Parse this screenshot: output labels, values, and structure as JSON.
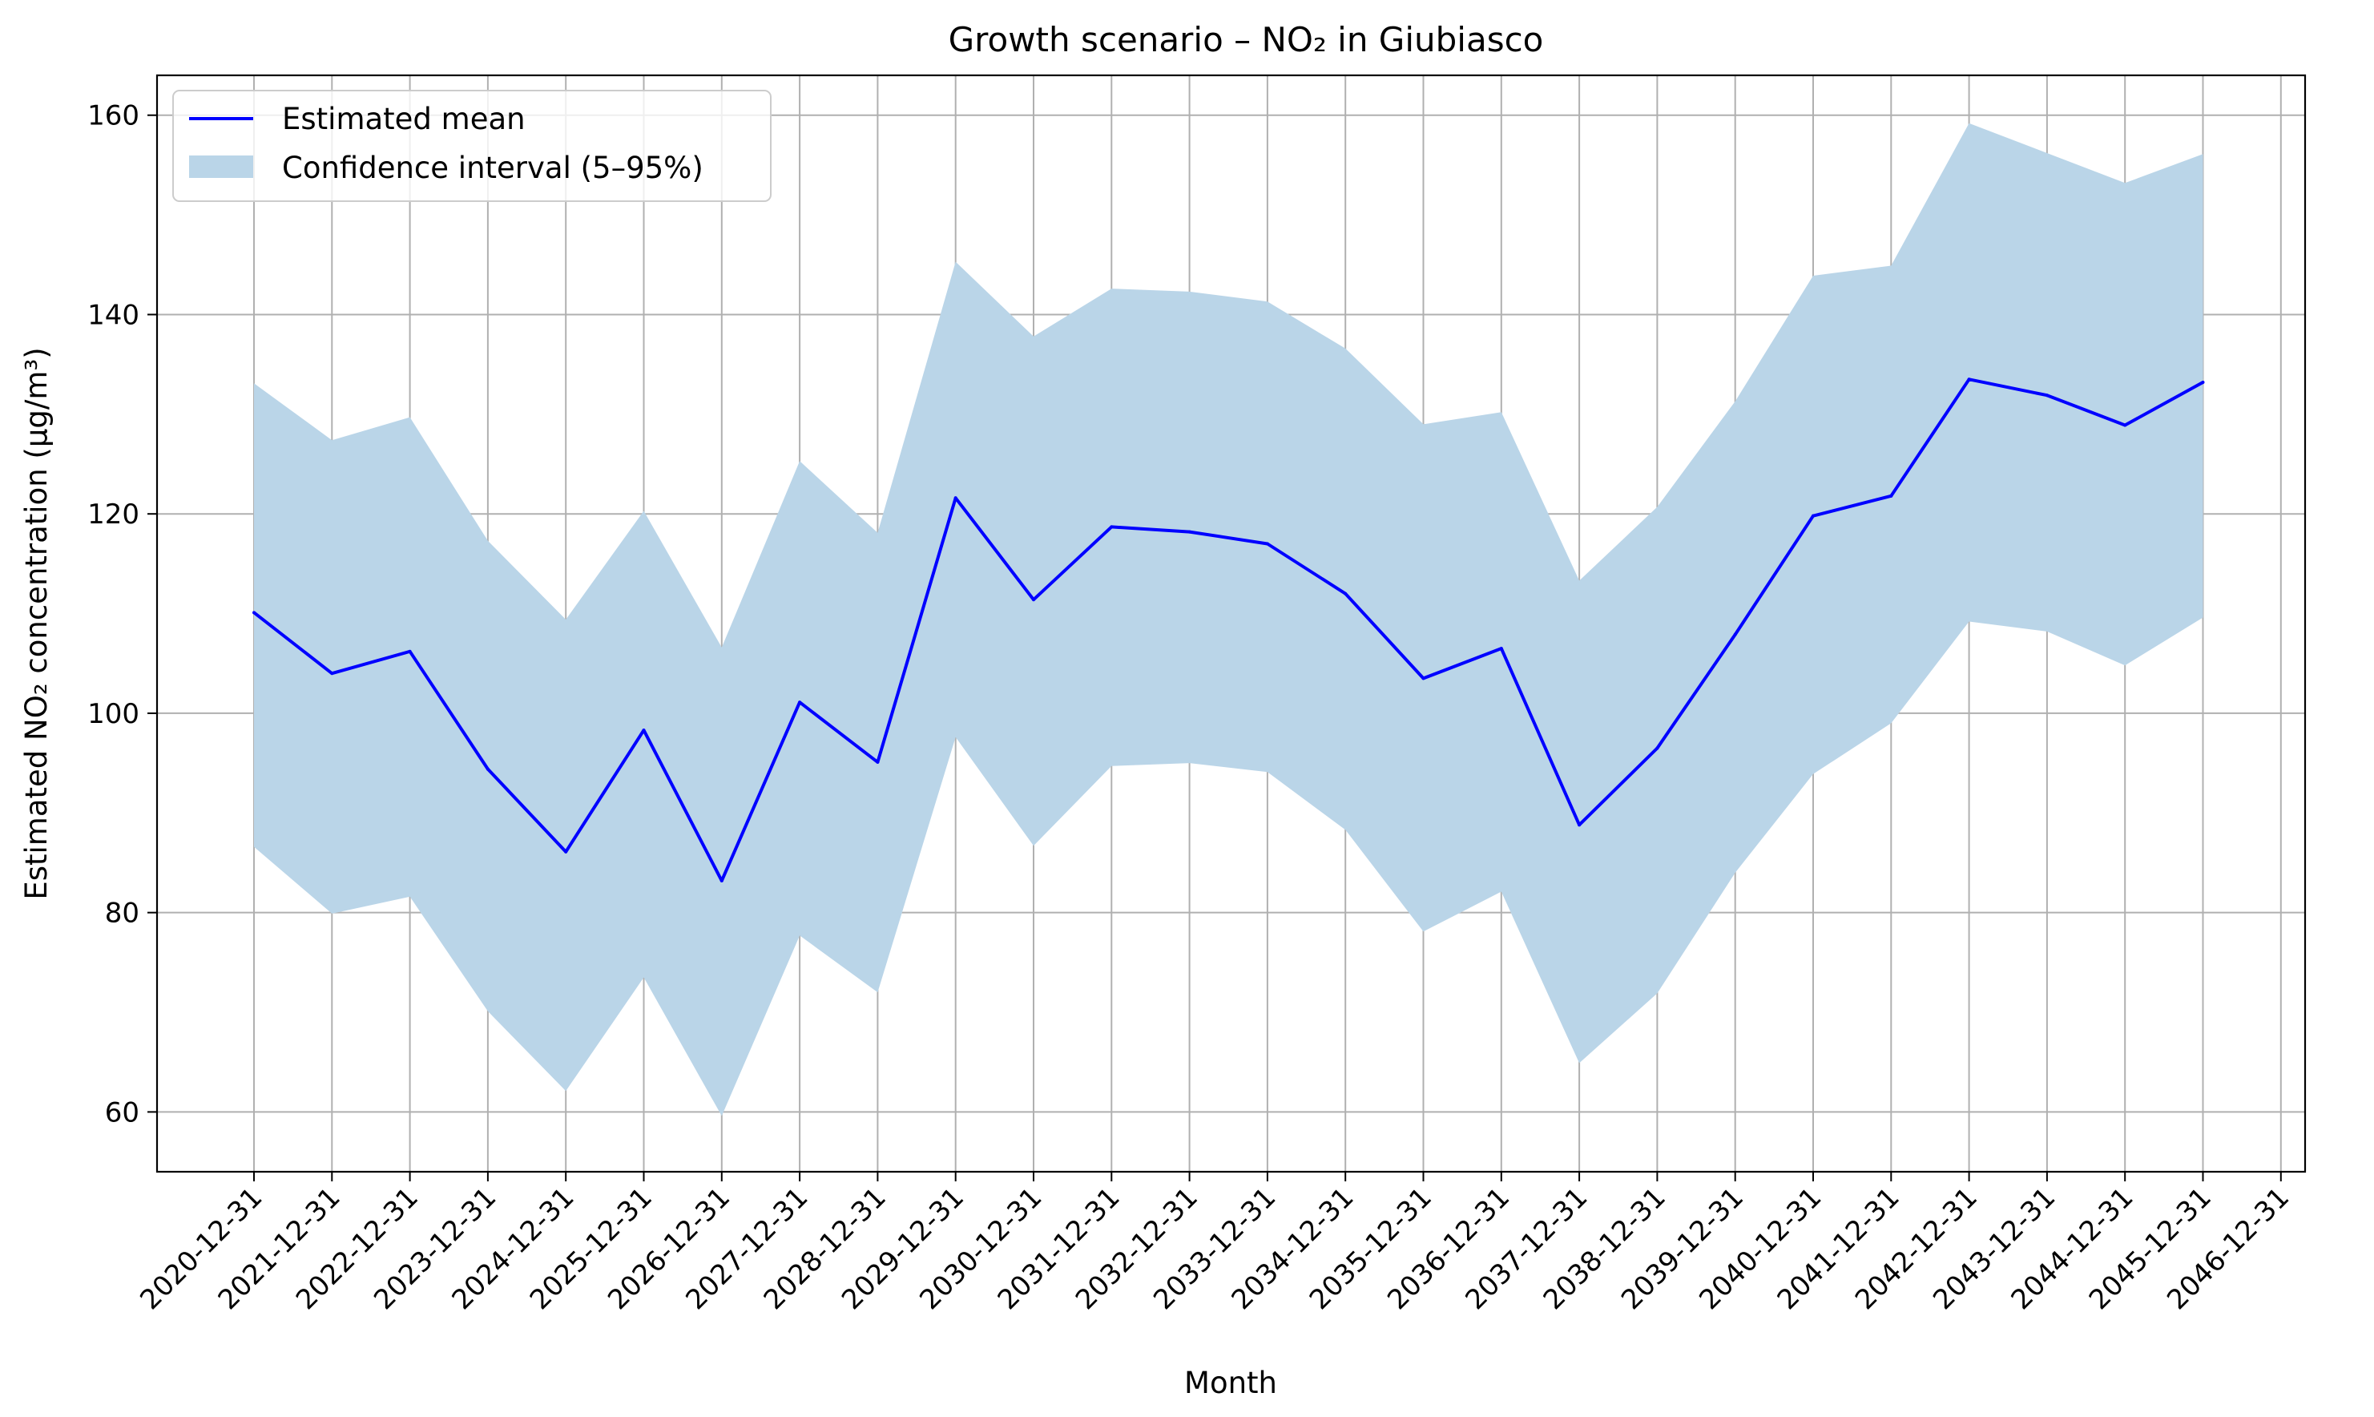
{
  "chart_data": {
    "type": "line",
    "title": "Growth scenario – NO₂ in Giubiasco",
    "xlabel": "Month",
    "ylabel": "Estimated NO₂ concentration (µg/m³)",
    "x": [
      "2020-12-31",
      "2021-12-31",
      "2022-12-31",
      "2023-12-31",
      "2024-12-31",
      "2025-12-31",
      "2026-12-31",
      "2027-12-31",
      "2028-12-31",
      "2029-12-31",
      "2030-12-31",
      "2031-12-31",
      "2032-12-31",
      "2033-12-31",
      "2034-12-31",
      "2035-12-31",
      "2036-12-31",
      "2037-12-31",
      "2038-12-31",
      "2039-12-31",
      "2040-12-31",
      "2041-12-31",
      "2042-12-31",
      "2043-12-31",
      "2044-12-31",
      "2045-12-31"
    ],
    "x_ticks": [
      "2020-12-31",
      "2021-12-31",
      "2022-12-31",
      "2023-12-31",
      "2024-12-31",
      "2025-12-31",
      "2026-12-31",
      "2027-12-31",
      "2028-12-31",
      "2029-12-31",
      "2030-12-31",
      "2031-12-31",
      "2032-12-31",
      "2033-12-31",
      "2034-12-31",
      "2035-12-31",
      "2036-12-31",
      "2037-12-31",
      "2038-12-31",
      "2039-12-31",
      "2040-12-31",
      "2041-12-31",
      "2042-12-31",
      "2043-12-31",
      "2044-12-31",
      "2045-12-31",
      "2046-12-31"
    ],
    "series": [
      {
        "name": "Estimated mean",
        "color": "#0000ff",
        "values": [
          110.1,
          104.0,
          106.2,
          94.4,
          86.1,
          98.3,
          83.2,
          101.1,
          95.1,
          121.6,
          111.4,
          118.7,
          118.2,
          117.0,
          112.0,
          103.5,
          106.5,
          88.8,
          96.5,
          107.9,
          119.8,
          121.8,
          133.5,
          131.9,
          128.9,
          133.2
        ]
      }
    ],
    "band": {
      "name": "Confidence interval (5–95%)",
      "color": "#bad5e8",
      "lower": [
        86.6,
        79.9,
        81.6,
        70.1,
        62.1,
        73.5,
        59.6,
        77.7,
        72.0,
        97.6,
        86.7,
        94.7,
        95.0,
        94.1,
        88.3,
        78.1,
        82.1,
        64.9,
        71.9,
        84.0,
        93.9,
        99.0,
        109.2,
        108.2,
        104.8,
        109.6
      ],
      "upper": [
        133.1,
        127.4,
        129.7,
        117.3,
        109.4,
        120.3,
        106.6,
        125.3,
        118.1,
        145.3,
        137.8,
        142.6,
        142.3,
        141.3,
        136.6,
        129.0,
        130.2,
        113.3,
        120.7,
        131.3,
        143.9,
        144.9,
        159.2,
        156.2,
        153.2,
        156.1
      ]
    },
    "ylim": [
      54,
      164
    ],
    "y_ticks": [
      60,
      80,
      100,
      120,
      140,
      160
    ],
    "grid": true,
    "legend": "top-left"
  }
}
